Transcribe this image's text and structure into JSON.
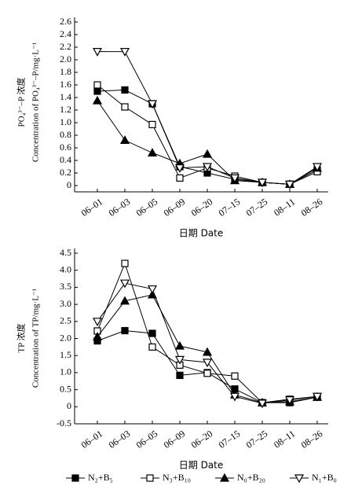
{
  "chart_data": [
    {
      "type": "line",
      "ylabel": [
        "PO₄³⁻–P 浓度",
        "Concentration of PO₄³⁻–P/mg·L⁻¹"
      ],
      "xlabel": "日期 Date",
      "categories": [
        "06–01",
        "06–03",
        "06–05",
        "06–09",
        "06–20",
        "07–15",
        "07–25",
        "08–11",
        "08–26"
      ],
      "ylim": [
        -0.1,
        2.6
      ],
      "yticks": [
        0,
        0.2,
        0.4,
        0.6,
        0.8,
        {
          "value": 1,
          "label": "1.0"
        },
        1.2,
        1.4,
        1.6,
        1.8,
        {
          "value": 2,
          "label": "2.0"
        },
        2.2,
        2.4,
        2.6
      ],
      "series": [
        {
          "name": "N₂+B₅",
          "color": "#000000",
          "marker": "square-filled",
          "values": [
            1.5,
            1.52,
            1.3,
            0.3,
            0.2,
            0.1,
            0.05,
            0.02,
            0.25
          ]
        },
        {
          "name": "N₃+B₁₀",
          "color": "#000000",
          "marker": "square-open",
          "values": [
            1.6,
            1.25,
            0.97,
            0.12,
            0.28,
            0.15,
            0.05,
            0.02,
            0.22
          ]
        },
        {
          "name": "N₀+B₂₀",
          "color": "#000000",
          "marker": "triangle-filled",
          "values": [
            1.35,
            0.72,
            0.52,
            0.35,
            0.5,
            0.08,
            0.05,
            0.02,
            0.28
          ]
        },
        {
          "name": "N₁+B₀",
          "color": "#000000",
          "marker": "triangle-down-open",
          "values": [
            2.13,
            2.13,
            1.3,
            0.28,
            0.3,
            0.12,
            0.05,
            0.02,
            0.3
          ]
        }
      ]
    },
    {
      "type": "line",
      "ylabel": [
        "TP 浓度",
        "Concentration of TP/mg·L⁻¹"
      ],
      "xlabel": "日期 Date",
      "categories": [
        "06–01",
        "06–03",
        "06–05",
        "06–09",
        "06–20",
        "07–15",
        "07–25",
        "08–11",
        "08–26"
      ],
      "ylim": [
        -0.5,
        4.5
      ],
      "yticks": [
        {
          "value": -0.5,
          "label": "-0.5"
        },
        0,
        0.5,
        {
          "value": 1,
          "label": "1.0"
        },
        1.5,
        {
          "value": 2,
          "label": "2.0"
        },
        2.5,
        {
          "value": 3,
          "label": "3.0"
        },
        3.5,
        {
          "value": 4,
          "label": "4.0"
        },
        4.5
      ],
      "series": [
        {
          "color": "#000000",
          "marker": "square-filled",
          "values": [
            1.93,
            2.23,
            2.15,
            0.92,
            1.0,
            0.52,
            0.12,
            0.12,
            0.28
          ]
        },
        {
          "color": "#000000",
          "marker": "square-open",
          "values": [
            2.22,
            4.2,
            1.75,
            1.22,
            0.98,
            0.9,
            0.12,
            0.22,
            0.3
          ]
        },
        {
          "color": "#000000",
          "marker": "triangle-filled",
          "values": [
            2.05,
            3.1,
            3.28,
            1.78,
            1.6,
            0.35,
            0.12,
            0.15,
            0.28
          ]
        },
        {
          "color": "#000000",
          "marker": "triangle-down-open",
          "values": [
            2.5,
            3.62,
            3.45,
            1.38,
            1.3,
            0.3,
            0.1,
            0.2,
            0.3
          ]
        }
      ]
    }
  ]
}
